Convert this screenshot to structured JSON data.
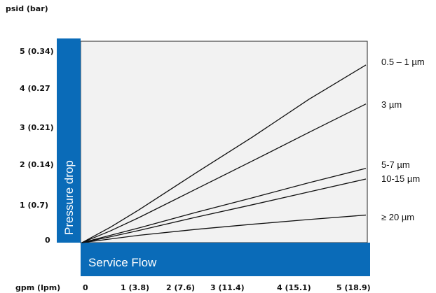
{
  "chart_data": {
    "type": "line",
    "y_unit_label": "psid (bar)",
    "x_unit_label": "gpm (lpm)",
    "ylabel": "Pressure drop",
    "xlabel": "Service Flow",
    "accent_color": "#0a6bb8",
    "line_color": "#111111",
    "plot_fill": "#f2f2f2",
    "xlim": [
      0,
      5
    ],
    "ylim": [
      0,
      5
    ],
    "x_ticks": [
      {
        "value": 0,
        "label": "0"
      },
      {
        "value": 1,
        "label": "1 (3.8)"
      },
      {
        "value": 2,
        "label": "2 (7.6)"
      },
      {
        "value": 3,
        "label": "3 (11.4)"
      },
      {
        "value": 4,
        "label": "4 (15.1)"
      },
      {
        "value": 5,
        "label": "5 (18.9)"
      }
    ],
    "y_ticks": [
      {
        "value": 0,
        "label": "0"
      },
      {
        "value": 1,
        "label": "1 (0.7)"
      },
      {
        "value": 2,
        "label": "2 (0.14)"
      },
      {
        "value": 3,
        "label": "3 (0.21)"
      },
      {
        "value": 4,
        "label": "4 (0.27"
      },
      {
        "value": 5,
        "label": "5 (0.34)"
      }
    ],
    "series": [
      {
        "name": "0.5 – 1 µm",
        "x": [
          0,
          0.5,
          1,
          2,
          3,
          4,
          5
        ],
        "y": [
          0,
          0.42,
          0.89,
          1.89,
          2.87,
          3.9,
          4.83
        ]
      },
      {
        "name": "3 µm",
        "x": [
          0,
          0.5,
          1,
          2,
          3,
          4,
          5
        ],
        "y": [
          0,
          0.32,
          0.68,
          1.45,
          2.22,
          3.0,
          3.77
        ]
      },
      {
        "name": "5-7 µm",
        "x": [
          0,
          0.5,
          1,
          2,
          3,
          4,
          5
        ],
        "y": [
          0,
          0.2,
          0.4,
          0.82,
          1.22,
          1.63,
          2.02
        ]
      },
      {
        "name": "10-15 µm",
        "x": [
          0,
          0.5,
          1,
          2,
          3,
          4,
          5
        ],
        "y": [
          0,
          0.16,
          0.33,
          0.69,
          1.03,
          1.38,
          1.73
        ]
      },
      {
        "name": "≥ 20 µm",
        "x": [
          0,
          0.5,
          1,
          2,
          3,
          4,
          5
        ],
        "y": [
          0,
          0.1,
          0.2,
          0.36,
          0.5,
          0.63,
          0.75
        ]
      }
    ]
  }
}
